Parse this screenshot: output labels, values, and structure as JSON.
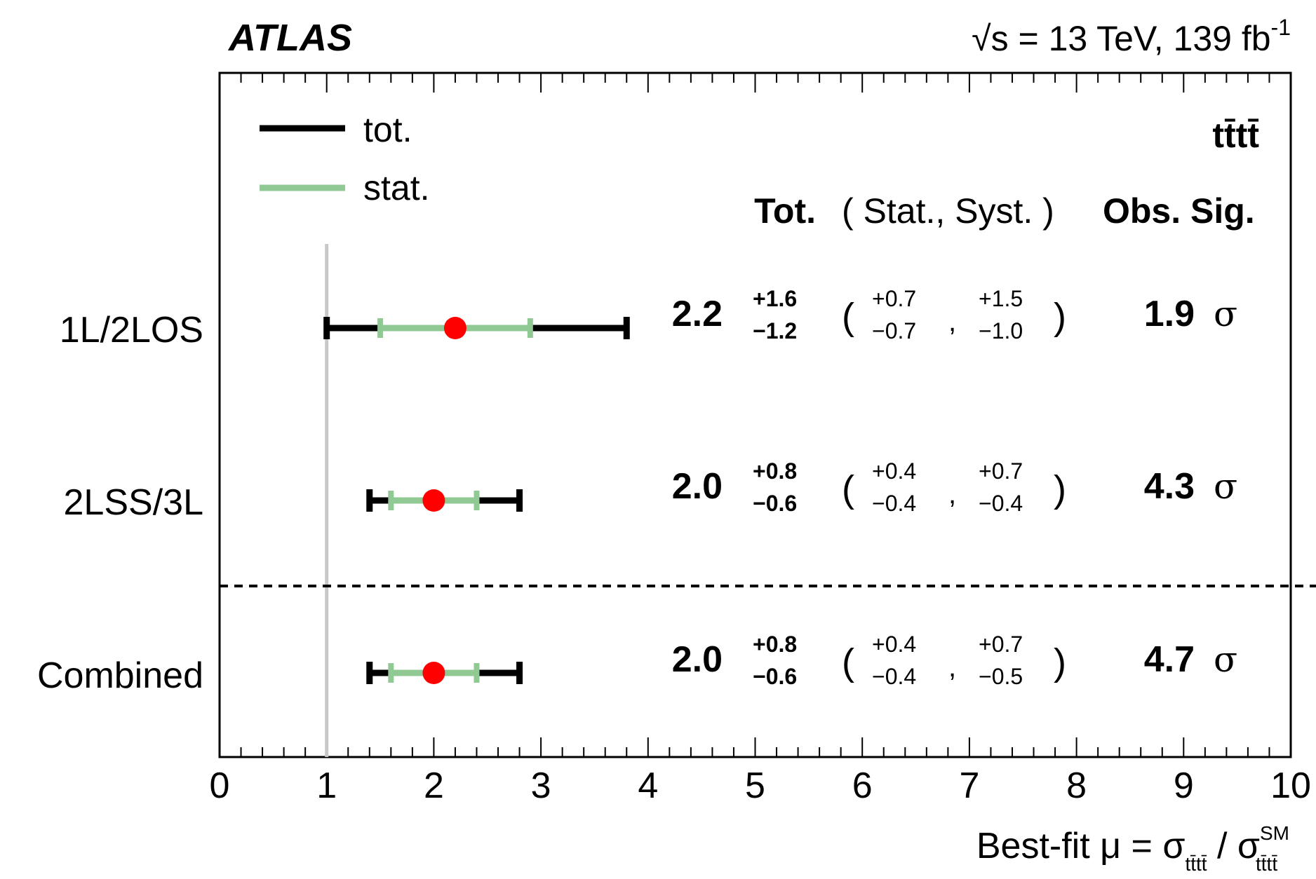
{
  "header": {
    "experiment": "ATLAS",
    "sqrt_symbol": "√",
    "sqrt_var": "s",
    "energy_text": " = 13 TeV, 139 fb",
    "lumi_exp": "-1"
  },
  "process_label": "tt̄tt̄",
  "legend": [
    {
      "label": "tot.",
      "color": "#000000"
    },
    {
      "label": "stat.",
      "color": "#90c993"
    }
  ],
  "columns": {
    "tot": "Tot.",
    "stat_syst": "( Stat., Syst. )",
    "obs_sig": "Obs. Sig."
  },
  "chart_data": {
    "type": "scatter",
    "orientation": "horizontal",
    "x_range": [
      0,
      10
    ],
    "x_ticks": [
      "0",
      "1",
      "2",
      "3",
      "4",
      "5",
      "6",
      "7",
      "8",
      "9",
      "10"
    ],
    "xlabel": {
      "prefix": "Best-fit μ = σ",
      "sub1": "tt̄tt̄",
      "slash": " / σ",
      "sup2": "SM",
      "sub2": "tt̄tt̄"
    },
    "sm_reference": 1,
    "marker_color": "#ff0000",
    "stat_color": "#90c993",
    "tot_color": "#000000",
    "rows": [
      {
        "label": "1L/2LOS",
        "value": "2.2",
        "mu": 2.2,
        "tot_up": "+1.6",
        "tot_down": "−1.2",
        "tot_up_val": 1.6,
        "tot_down_val": 1.2,
        "stat_up": "+0.7",
        "stat_down": "−0.7",
        "stat_up_val": 0.7,
        "stat_down_val": 0.7,
        "syst_up": "+1.5",
        "syst_down": "−1.0",
        "obs_sig": "1.9",
        "sig_unit": "σ"
      },
      {
        "label": "2LSS/3L",
        "value": "2.0",
        "mu": 2.0,
        "tot_up": "+0.8",
        "tot_down": "−0.6",
        "tot_up_val": 0.8,
        "tot_down_val": 0.6,
        "stat_up": "+0.4",
        "stat_down": "−0.4",
        "stat_up_val": 0.4,
        "stat_down_val": 0.4,
        "syst_up": "+0.7",
        "syst_down": "−0.4",
        "obs_sig": "4.3",
        "sig_unit": "σ"
      },
      {
        "label": "Combined",
        "value": "2.0",
        "mu": 2.0,
        "tot_up": "+0.8",
        "tot_down": "−0.6",
        "tot_up_val": 0.8,
        "tot_down_val": 0.6,
        "stat_up": "+0.4",
        "stat_down": "−0.4",
        "stat_up_val": 0.4,
        "stat_down_val": 0.4,
        "syst_up": "+0.7",
        "syst_down": "−0.5",
        "obs_sig": "4.7",
        "sig_unit": "σ"
      }
    ]
  }
}
